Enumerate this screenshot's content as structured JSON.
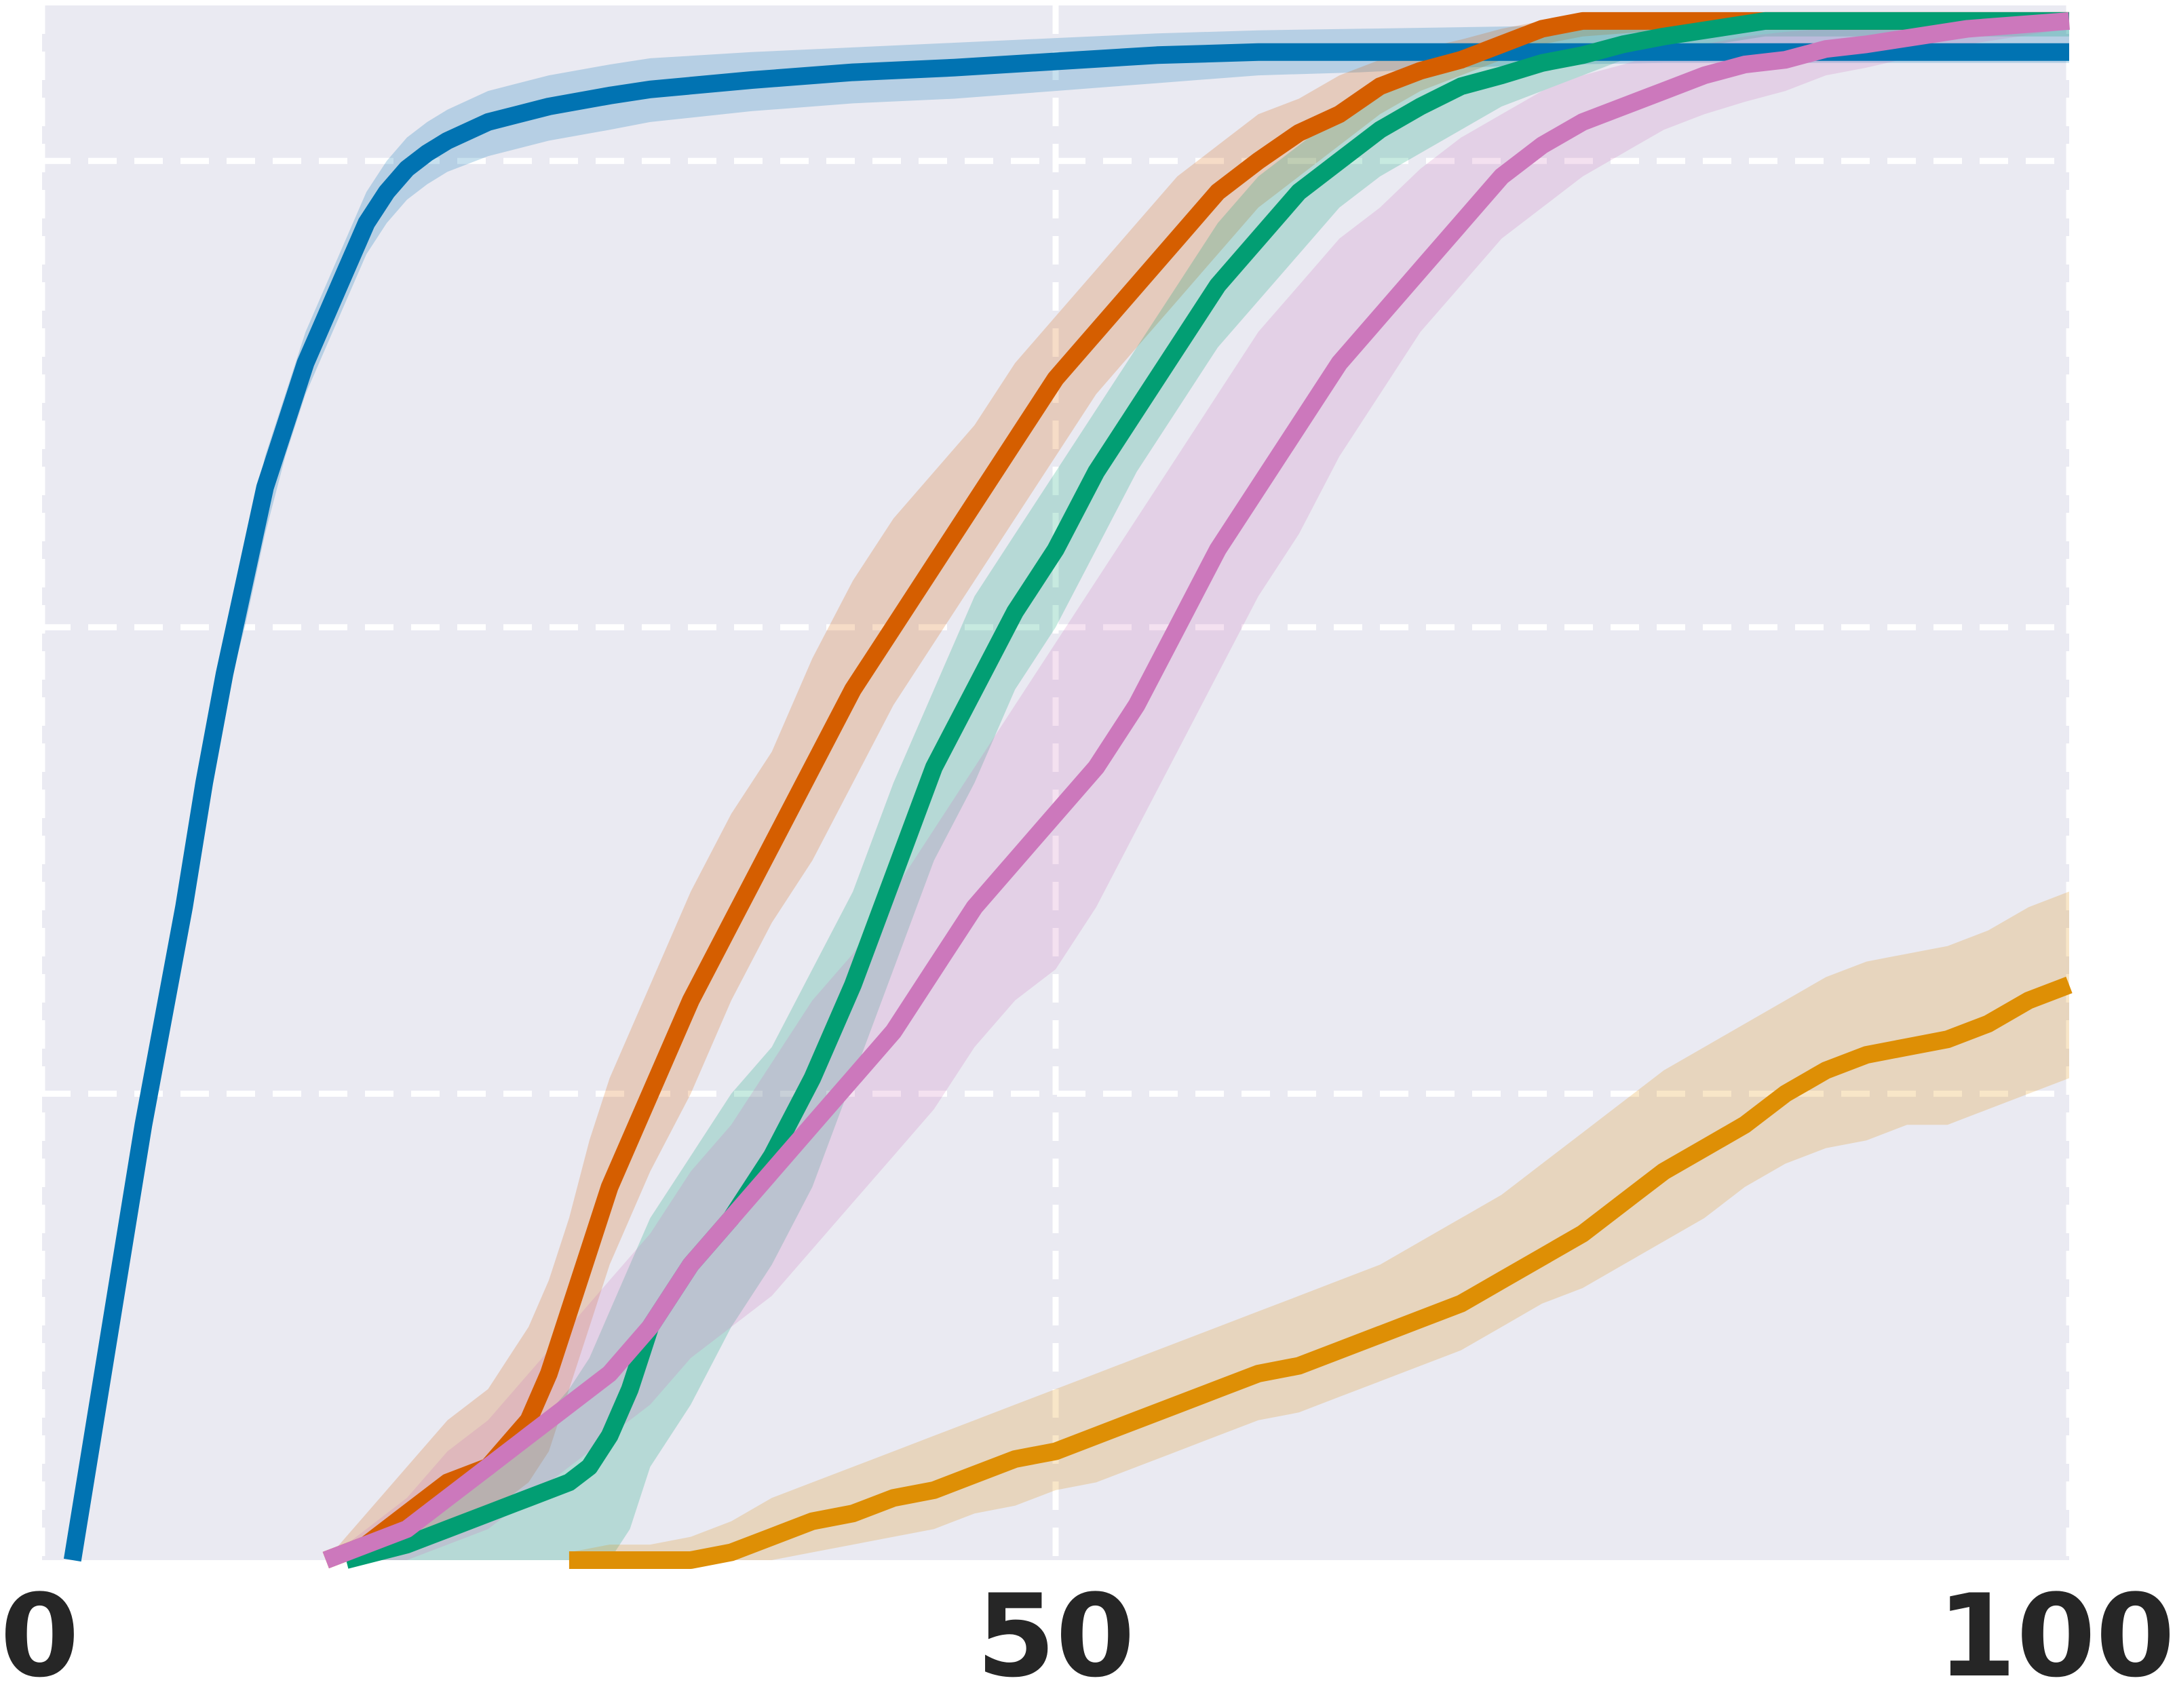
{
  "chart_data": {
    "type": "line",
    "title": "",
    "xlabel": "",
    "ylabel": "",
    "xlim": [
      0,
      100
    ],
    "ylim": [
      0,
      1
    ],
    "grid": true,
    "legend": "none",
    "background_color": "#eaeaf2",
    "grid_color": "#ffffff",
    "x_ticks": [
      {
        "value": 0,
        "label": "0"
      },
      {
        "value": 50,
        "label": "50"
      },
      {
        "value": 100,
        "label": "100"
      }
    ],
    "y_gridlines": [
      0.3,
      0.6,
      0.9
    ],
    "series": [
      {
        "color": "#0173b2",
        "x": [
          1.5,
          2.5,
          4,
          5,
          6,
          7,
          8,
          9,
          10,
          11,
          12,
          13,
          14,
          15,
          16,
          17,
          18,
          19,
          20,
          22,
          25,
          28,
          30,
          35,
          40,
          45,
          50,
          55,
          60,
          65,
          70,
          75,
          80,
          85,
          90,
          95,
          100
        ],
        "mean": [
          0.0,
          0.08,
          0.2,
          0.28,
          0.35,
          0.42,
          0.5,
          0.57,
          0.63,
          0.69,
          0.73,
          0.77,
          0.8,
          0.83,
          0.86,
          0.88,
          0.895,
          0.905,
          0.913,
          0.925,
          0.935,
          0.942,
          0.946,
          0.952,
          0.957,
          0.96,
          0.964,
          0.968,
          0.97,
          0.97,
          0.97,
          0.97,
          0.97,
          0.97,
          0.97,
          0.97,
          0.97
        ],
        "lower": [
          0.0,
          0.06,
          0.18,
          0.26,
          0.33,
          0.4,
          0.48,
          0.55,
          0.6,
          0.66,
          0.71,
          0.75,
          0.78,
          0.81,
          0.84,
          0.86,
          0.875,
          0.885,
          0.893,
          0.903,
          0.913,
          0.92,
          0.925,
          0.932,
          0.937,
          0.94,
          0.945,
          0.95,
          0.955,
          0.957,
          0.96,
          0.962,
          0.963,
          0.963,
          0.963,
          0.963,
          0.963
        ],
        "upper": [
          0.0,
          0.1,
          0.22,
          0.3,
          0.37,
          0.44,
          0.52,
          0.59,
          0.65,
          0.71,
          0.75,
          0.79,
          0.82,
          0.85,
          0.88,
          0.9,
          0.915,
          0.925,
          0.933,
          0.945,
          0.955,
          0.962,
          0.966,
          0.97,
          0.973,
          0.976,
          0.979,
          0.982,
          0.984,
          0.985,
          0.986,
          0.987,
          0.988,
          0.988,
          0.988,
          0.988,
          0.988
        ]
      },
      {
        "color": "#d55e00",
        "x": [
          14,
          16,
          18,
          20,
          22,
          24,
          25,
          26,
          27,
          28,
          30,
          32,
          34,
          36,
          38,
          40,
          42,
          44,
          46,
          48,
          50,
          52,
          54,
          56,
          58,
          60,
          62,
          64,
          66,
          68,
          70,
          72,
          74,
          76,
          78,
          80,
          85,
          90,
          95,
          100
        ],
        "mean": [
          0.0,
          0.01,
          0.03,
          0.05,
          0.06,
          0.09,
          0.12,
          0.16,
          0.2,
          0.24,
          0.3,
          0.36,
          0.41,
          0.46,
          0.51,
          0.56,
          0.6,
          0.64,
          0.68,
          0.72,
          0.76,
          0.79,
          0.82,
          0.85,
          0.88,
          0.9,
          0.918,
          0.93,
          0.948,
          0.958,
          0.965,
          0.975,
          0.985,
          0.99,
          0.99,
          0.99,
          0.99,
          0.99,
          0.99,
          0.99
        ],
        "lower": [
          0.0,
          0.0,
          0.01,
          0.02,
          0.03,
          0.05,
          0.07,
          0.11,
          0.15,
          0.19,
          0.25,
          0.3,
          0.36,
          0.41,
          0.45,
          0.5,
          0.55,
          0.59,
          0.63,
          0.67,
          0.71,
          0.75,
          0.78,
          0.81,
          0.84,
          0.87,
          0.89,
          0.91,
          0.93,
          0.945,
          0.955,
          0.965,
          0.975,
          0.98,
          0.982,
          0.984,
          0.986,
          0.986,
          0.986,
          0.986
        ],
        "upper": [
          0.0,
          0.03,
          0.06,
          0.09,
          0.11,
          0.15,
          0.18,
          0.22,
          0.27,
          0.31,
          0.37,
          0.43,
          0.48,
          0.52,
          0.58,
          0.63,
          0.67,
          0.7,
          0.73,
          0.77,
          0.8,
          0.83,
          0.86,
          0.89,
          0.91,
          0.93,
          0.94,
          0.955,
          0.965,
          0.972,
          0.978,
          0.985,
          0.99,
          0.993,
          0.994,
          0.994,
          0.994,
          0.994,
          0.994,
          0.994
        ]
      },
      {
        "color": "#029e73",
        "x": [
          15,
          18,
          20,
          22,
          24,
          26,
          27,
          28,
          29,
          30,
          32,
          34,
          36,
          38,
          40,
          42,
          44,
          46,
          48,
          50,
          52,
          54,
          56,
          58,
          60,
          62,
          64,
          66,
          68,
          70,
          72,
          74,
          76,
          78,
          80,
          85,
          90,
          95,
          100
        ],
        "mean": [
          0.0,
          0.01,
          0.02,
          0.03,
          0.04,
          0.05,
          0.06,
          0.08,
          0.11,
          0.15,
          0.19,
          0.22,
          0.26,
          0.31,
          0.37,
          0.44,
          0.51,
          0.56,
          0.61,
          0.65,
          0.7,
          0.74,
          0.78,
          0.82,
          0.85,
          0.88,
          0.9,
          0.92,
          0.935,
          0.948,
          0.955,
          0.963,
          0.968,
          0.975,
          0.98,
          0.99,
          0.99,
          0.99,
          0.99
        ],
        "lower": [
          0.0,
          0.0,
          0.0,
          0.0,
          0.0,
          0.0,
          0.0,
          0.0,
          0.02,
          0.06,
          0.1,
          0.15,
          0.19,
          0.24,
          0.31,
          0.38,
          0.45,
          0.5,
          0.56,
          0.6,
          0.65,
          0.7,
          0.74,
          0.78,
          0.81,
          0.84,
          0.87,
          0.89,
          0.905,
          0.92,
          0.935,
          0.945,
          0.955,
          0.965,
          0.97,
          0.98,
          0.98,
          0.98,
          0.98
        ],
        "upper": [
          0.0,
          0.02,
          0.04,
          0.06,
          0.08,
          0.11,
          0.13,
          0.16,
          0.19,
          0.22,
          0.26,
          0.3,
          0.33,
          0.38,
          0.43,
          0.5,
          0.56,
          0.62,
          0.66,
          0.7,
          0.74,
          0.78,
          0.82,
          0.86,
          0.89,
          0.91,
          0.93,
          0.945,
          0.96,
          0.97,
          0.975,
          0.98,
          0.985,
          0.99,
          0.99,
          0.995,
          0.995,
          0.995,
          0.995
        ]
      },
      {
        "color": "#cc78bc",
        "x": [
          14,
          16,
          18,
          20,
          22,
          24,
          26,
          28,
          30,
          32,
          34,
          36,
          38,
          40,
          42,
          44,
          46,
          48,
          50,
          52,
          54,
          56,
          58,
          60,
          62,
          64,
          66,
          68,
          70,
          72,
          74,
          76,
          78,
          80,
          82,
          84,
          86,
          88,
          90,
          95,
          100
        ],
        "mean": [
          0.0,
          0.01,
          0.02,
          0.04,
          0.06,
          0.08,
          0.1,
          0.12,
          0.15,
          0.19,
          0.22,
          0.25,
          0.28,
          0.31,
          0.34,
          0.38,
          0.42,
          0.45,
          0.48,
          0.51,
          0.55,
          0.6,
          0.65,
          0.69,
          0.73,
          0.77,
          0.8,
          0.83,
          0.86,
          0.89,
          0.91,
          0.925,
          0.935,
          0.945,
          0.955,
          0.962,
          0.965,
          0.972,
          0.975,
          0.985,
          0.99
        ],
        "lower": [
          0.0,
          0.0,
          0.0,
          0.01,
          0.02,
          0.04,
          0.06,
          0.08,
          0.1,
          0.13,
          0.15,
          0.17,
          0.2,
          0.23,
          0.26,
          0.29,
          0.33,
          0.36,
          0.38,
          0.42,
          0.47,
          0.52,
          0.57,
          0.62,
          0.66,
          0.71,
          0.75,
          0.79,
          0.82,
          0.85,
          0.87,
          0.89,
          0.905,
          0.92,
          0.93,
          0.938,
          0.945,
          0.955,
          0.96,
          0.975,
          0.985
        ],
        "upper": [
          0.0,
          0.02,
          0.04,
          0.07,
          0.09,
          0.12,
          0.15,
          0.18,
          0.21,
          0.25,
          0.28,
          0.32,
          0.36,
          0.39,
          0.43,
          0.47,
          0.51,
          0.55,
          0.59,
          0.63,
          0.67,
          0.71,
          0.75,
          0.79,
          0.82,
          0.85,
          0.87,
          0.895,
          0.915,
          0.93,
          0.945,
          0.955,
          0.962,
          0.97,
          0.975,
          0.98,
          0.983,
          0.985,
          0.987,
          0.99,
          0.995
        ]
      },
      {
        "color": "#de8f05",
        "x": [
          26,
          28,
          30,
          32,
          34,
          36,
          38,
          40,
          42,
          44,
          46,
          48,
          50,
          52,
          54,
          56,
          58,
          60,
          62,
          64,
          66,
          68,
          70,
          72,
          74,
          76,
          78,
          80,
          82,
          84,
          86,
          88,
          90,
          92,
          94,
          96,
          98,
          100
        ],
        "mean": [
          0.0,
          0.0,
          0.0,
          0.0,
          0.005,
          0.015,
          0.025,
          0.03,
          0.04,
          0.045,
          0.055,
          0.065,
          0.07,
          0.08,
          0.09,
          0.1,
          0.11,
          0.12,
          0.125,
          0.135,
          0.145,
          0.155,
          0.165,
          0.18,
          0.195,
          0.21,
          0.23,
          0.25,
          0.265,
          0.28,
          0.3,
          0.315,
          0.325,
          0.33,
          0.335,
          0.345,
          0.36,
          0.37
        ],
        "lower": [
          0.0,
          0.0,
          0.0,
          0.0,
          0.0,
          0.0,
          0.005,
          0.01,
          0.015,
          0.02,
          0.03,
          0.035,
          0.045,
          0.05,
          0.06,
          0.07,
          0.08,
          0.09,
          0.095,
          0.105,
          0.115,
          0.125,
          0.135,
          0.15,
          0.165,
          0.175,
          0.19,
          0.205,
          0.22,
          0.24,
          0.255,
          0.265,
          0.27,
          0.28,
          0.28,
          0.29,
          0.3,
          0.31
        ],
        "upper": [
          0.005,
          0.01,
          0.01,
          0.015,
          0.025,
          0.04,
          0.05,
          0.06,
          0.07,
          0.08,
          0.09,
          0.1,
          0.11,
          0.12,
          0.13,
          0.14,
          0.15,
          0.16,
          0.17,
          0.18,
          0.19,
          0.205,
          0.22,
          0.235,
          0.255,
          0.275,
          0.295,
          0.315,
          0.33,
          0.345,
          0.36,
          0.375,
          0.385,
          0.39,
          0.395,
          0.405,
          0.42,
          0.43
        ]
      }
    ]
  }
}
